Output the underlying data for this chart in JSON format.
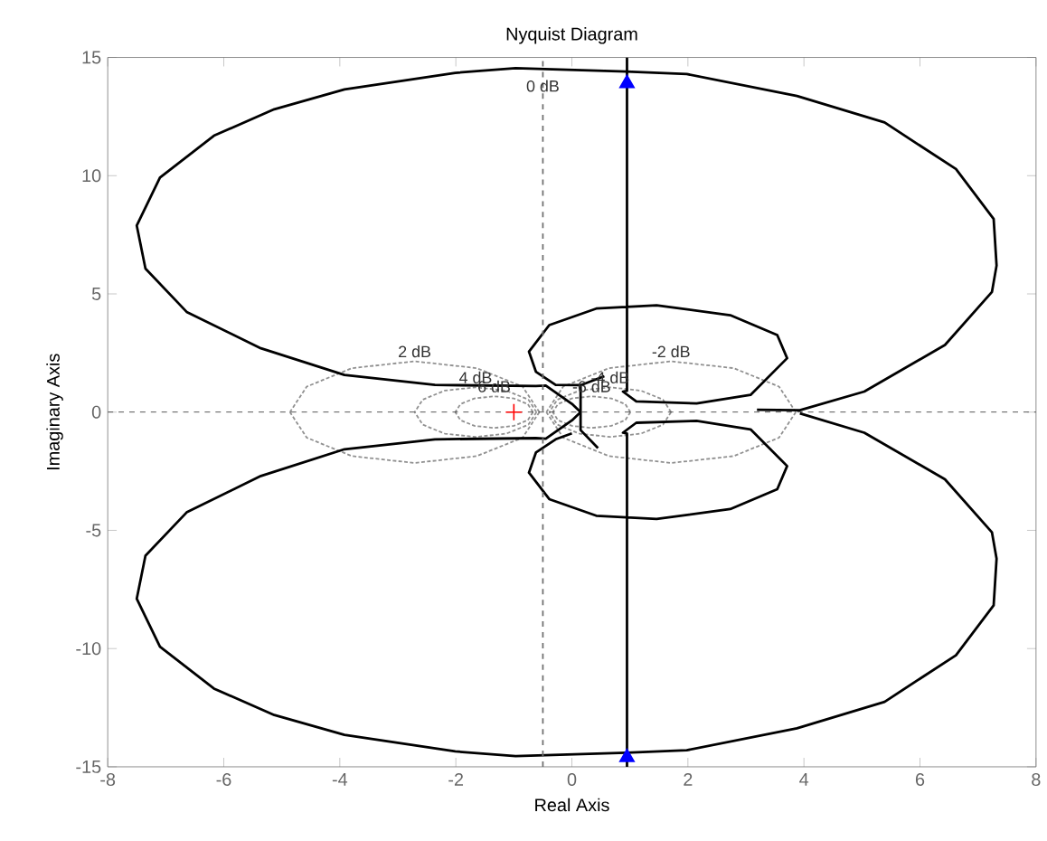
{
  "chart_data": {
    "type": "line",
    "title": "Nyquist Diagram",
    "xlabel": "Real Axis",
    "ylabel": "Imaginary Axis",
    "xlim": [
      -8,
      8
    ],
    "ylim": [
      -15,
      15
    ],
    "xticks": [
      -8,
      -6,
      -4,
      -2,
      0,
      2,
      4,
      6,
      8
    ],
    "yticks": [
      -15,
      -10,
      -5,
      0,
      5,
      10,
      15
    ],
    "ref_lines": [
      {
        "axis": "x",
        "value": -0.5,
        "label": "0 dB",
        "color": "#707070",
        "line_style": "dashed"
      },
      {
        "axis": "y",
        "value": 0,
        "color": "#404040",
        "line_style": "dashed"
      }
    ],
    "annotations": [
      {
        "text": "2 dB",
        "x": -2.71,
        "y": 2.15
      },
      {
        "text": "-2 dB",
        "x": 1.71,
        "y": 2.15
      },
      {
        "text": "4 dB",
        "x": -1.66,
        "y": 1.05
      },
      {
        "text": "6 dB",
        "x": -1.34,
        "y": 0.67
      },
      {
        "text": "-4 dB",
        "x": 0.66,
        "y": 1.05
      },
      {
        "text": "-6 dB",
        "x": 0.34,
        "y": 0.67
      }
    ],
    "series": [
      {
        "line_style": "dashed",
        "color": "#909090",
        "x": [
          -0.56,
          -0.85,
          -1.64,
          -2.71,
          -3.79,
          -4.57,
          -4.86
        ],
        "values": [
          0,
          1.08,
          1.86,
          2.15,
          1.86,
          1.08,
          0
        ]
      },
      {
        "line_style": "dashed",
        "color": "#909090",
        "x": [
          -0.56,
          -0.85,
          -1.64,
          -2.71,
          -3.79,
          -4.57,
          -4.86
        ],
        "values": [
          0,
          -1.08,
          -1.86,
          -2.15,
          -1.86,
          -1.08,
          0
        ]
      },
      {
        "line_style": "dashed",
        "color": "#909090",
        "x": [
          3.86,
          3.57,
          2.79,
          1.71,
          0.64,
          -0.15,
          -0.44
        ],
        "values": [
          0,
          1.08,
          1.86,
          2.15,
          1.86,
          1.08,
          0
        ]
      },
      {
        "line_style": "dashed",
        "color": "#909090",
        "x": [
          3.86,
          3.57,
          2.79,
          1.71,
          0.64,
          -0.15,
          -0.44
        ],
        "values": [
          0,
          -1.08,
          -1.86,
          -2.15,
          -1.86,
          -1.08,
          0
        ]
      },
      {
        "line_style": "dashed",
        "color": "#909090",
        "x": [
          -0.61,
          -0.75,
          -1.13,
          -1.66,
          -2.19,
          -2.57,
          -2.71
        ],
        "values": [
          0,
          0.53,
          0.91,
          1.05,
          0.91,
          0.53,
          0
        ]
      },
      {
        "line_style": "dashed",
        "color": "#909090",
        "x": [
          -0.61,
          -0.75,
          -1.13,
          -1.66,
          -2.19,
          -2.57,
          -2.71
        ],
        "values": [
          0,
          -0.53,
          -0.91,
          -1.05,
          -0.91,
          -0.53,
          0
        ]
      },
      {
        "line_style": "dashed",
        "color": "#909090",
        "x": [
          1.71,
          1.57,
          1.19,
          0.66,
          0.13,
          -0.25,
          -0.39
        ],
        "values": [
          0,
          0.53,
          0.91,
          1.05,
          0.91,
          0.53,
          0
        ]
      },
      {
        "line_style": "dashed",
        "color": "#909090",
        "x": [
          1.71,
          1.57,
          1.19,
          0.66,
          0.13,
          -0.25,
          -0.39
        ],
        "values": [
          0,
          -0.53,
          -0.91,
          -1.05,
          -0.91,
          -0.53,
          0
        ]
      },
      {
        "line_style": "dashed",
        "color": "#909090",
        "x": [
          -0.67,
          -0.76,
          -1.0,
          -1.34,
          -1.68,
          -1.92,
          -2.01
        ],
        "values": [
          0,
          0.34,
          0.58,
          0.67,
          0.58,
          0.34,
          0
        ]
      },
      {
        "line_style": "dashed",
        "color": "#909090",
        "x": [
          -0.67,
          -0.76,
          -1.0,
          -1.34,
          -1.68,
          -1.92,
          -2.01
        ],
        "values": [
          0,
          -0.34,
          -0.58,
          -0.67,
          -0.58,
          -0.34,
          0
        ]
      },
      {
        "line_style": "dashed",
        "color": "#909090",
        "x": [
          1.01,
          0.92,
          0.68,
          0.34,
          0.0,
          -0.24,
          -0.33
        ],
        "values": [
          0,
          0.34,
          0.58,
          0.67,
          0.58,
          0.34,
          0
        ]
      },
      {
        "line_style": "dashed",
        "color": "#909090",
        "x": [
          1.01,
          0.92,
          0.68,
          0.34,
          0.0,
          -0.24,
          -0.33
        ],
        "values": [
          0,
          -0.34,
          -0.58,
          -0.67,
          -0.58,
          -0.34,
          0
        ]
      },
      {
        "line_style": "solid",
        "color": "#000000",
        "x": [
          3.19,
          3.93,
          5.04,
          6.43,
          7.24,
          7.32,
          7.27,
          6.62,
          5.39,
          3.88,
          1.98,
          0.94,
          -0.97,
          -2.01,
          -3.92,
          -5.13,
          -6.17,
          -7.1,
          -7.5,
          -7.35,
          -6.64,
          -5.36,
          -3.92,
          -2.36,
          -0.62,
          -0.45,
          0.0,
          0.15
        ],
        "values": [
          0.1,
          0.08,
          0.87,
          2.84,
          5.08,
          6.2,
          8.17,
          10.28,
          12.25,
          13.37,
          14.3,
          14.4,
          14.55,
          14.35,
          13.65,
          12.81,
          11.69,
          9.92,
          7.89,
          6.07,
          4.24,
          2.7,
          1.57,
          1.15,
          1.1,
          1.12,
          0.35,
          0.0
        ]
      },
      {
        "line_style": "solid",
        "color": "#000000",
        "x": [
          3.93,
          5.04,
          6.43,
          7.24,
          7.32,
          7.27,
          6.62,
          5.39,
          3.88,
          1.98,
          0.94,
          -0.97,
          -2.01,
          -3.92,
          -5.13,
          -6.17,
          -7.1,
          -7.5,
          -7.35,
          -6.64,
          -5.36,
          -3.92,
          -2.36,
          -0.62,
          -0.45,
          0.0,
          0.15
        ],
        "values": [
          -0.05,
          -0.87,
          -2.84,
          -5.08,
          -6.2,
          -8.17,
          -10.28,
          -12.25,
          -13.37,
          -14.3,
          -14.4,
          -14.55,
          -14.35,
          -13.65,
          -12.81,
          -11.69,
          -9.92,
          -7.89,
          -6.07,
          -4.24,
          -2.7,
          -1.57,
          -1.15,
          -1.1,
          -1.12,
          -0.35,
          0.0
        ]
      },
      {
        "line_style": "solid",
        "color": "#000000",
        "x": [
          0.95,
          0.95,
          0.88,
          1.11,
          2.15,
          3.08,
          3.71,
          3.54,
          2.73,
          1.46,
          0.42,
          -0.39,
          -0.74,
          -0.62,
          -0.28,
          0.15,
          0.56
        ],
        "values": [
          15,
          0.9,
          0.87,
          0.45,
          0.37,
          0.73,
          2.28,
          3.26,
          4.1,
          4.52,
          4.38,
          3.68,
          2.56,
          1.71,
          1.15,
          1.14,
          1.52
        ]
      },
      {
        "line_style": "solid",
        "color": "#000000",
        "x": [
          0.95,
          0.95,
          0.88,
          1.11,
          2.15,
          3.08,
          3.71,
          3.54,
          2.73,
          1.46,
          0.42,
          -0.39,
          -0.74,
          -0.62,
          -0.28,
          0.0
        ],
        "values": [
          -15,
          -0.9,
          -0.87,
          -0.45,
          -0.37,
          -0.73,
          -2.28,
          -3.26,
          -4.1,
          -4.52,
          -4.38,
          -3.68,
          -2.56,
          -1.71,
          -1.15,
          -0.9
        ]
      },
      {
        "line_style": "solid",
        "color": "#000000",
        "x": [
          0.15,
          0.15,
          0.45
        ],
        "values": [
          1.14,
          -0.76,
          -1.52
        ]
      },
      {
        "type": "scatter",
        "marker": "triangle",
        "color": "#0000ff",
        "x": [
          0.95,
          0.95
        ],
        "values": [
          13.9,
          -14.6
        ]
      },
      {
        "type": "scatter",
        "marker": "cross",
        "color": "#ff0000",
        "x": [
          -1
        ],
        "values": [
          0
        ]
      }
    ]
  }
}
